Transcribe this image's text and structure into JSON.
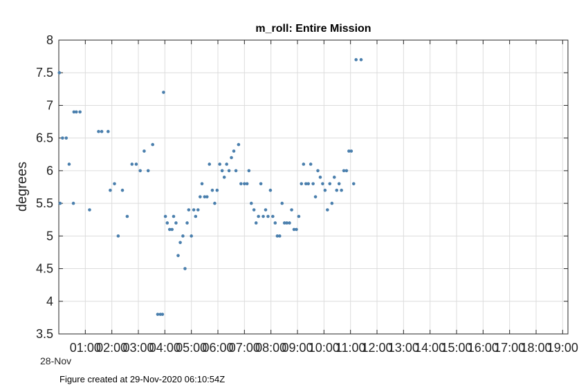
{
  "chart_data": {
    "type": "scatter",
    "title": "m_roll: Entire Mission",
    "xlabel": "",
    "ylabel": "degrees",
    "ylim": [
      3.5,
      8
    ],
    "yticks": [
      3.5,
      4,
      4.5,
      5,
      5.5,
      6,
      6.5,
      7,
      7.5,
      8
    ],
    "ytick_labels": [
      "3.5",
      "4",
      "4.5",
      "5",
      "5.5",
      "6",
      "6.5",
      "7",
      "7.5",
      "8"
    ],
    "xlim_hours": [
      0,
      19.2
    ],
    "xticks_hours": [
      1,
      2,
      3,
      4,
      5,
      6,
      7,
      8,
      9,
      10,
      11,
      12,
      13,
      14,
      15,
      16,
      17,
      18,
      19
    ],
    "xtick_labels": [
      "01:00",
      "02:00",
      "03:00",
      "04:00",
      "05:00",
      "06:00",
      "07:00",
      "08:00",
      "09:00",
      "10:00",
      "11:00",
      "12:00",
      "13:00",
      "14:00",
      "15:00",
      "16:00",
      "17:00",
      "18:00",
      "19:00"
    ],
    "x_date_label": "28-Nov",
    "grid": true,
    "marker_color": "#4a7fad",
    "points": [
      [
        0.02,
        7.5
      ],
      [
        0.05,
        5.5
      ],
      [
        0.14,
        6.5
      ],
      [
        0.28,
        6.5
      ],
      [
        0.39,
        6.1
      ],
      [
        0.55,
        5.5
      ],
      [
        0.57,
        6.9
      ],
      [
        0.66,
        6.9
      ],
      [
        0.8,
        6.9
      ],
      [
        1.16,
        5.4
      ],
      [
        1.5,
        6.6
      ],
      [
        1.62,
        6.6
      ],
      [
        1.86,
        6.6
      ],
      [
        1.94,
        5.7
      ],
      [
        2.1,
        5.8
      ],
      [
        2.24,
        5.0
      ],
      [
        2.4,
        5.7
      ],
      [
        2.58,
        5.3
      ],
      [
        2.76,
        6.1
      ],
      [
        2.92,
        6.1
      ],
      [
        3.07,
        6.0
      ],
      [
        3.22,
        6.3
      ],
      [
        3.37,
        6.0
      ],
      [
        3.54,
        6.4
      ],
      [
        3.73,
        3.8
      ],
      [
        3.83,
        3.8
      ],
      [
        3.91,
        3.8
      ],
      [
        3.95,
        7.2
      ],
      [
        4.02,
        5.3
      ],
      [
        4.09,
        5.2
      ],
      [
        4.18,
        5.1
      ],
      [
        4.27,
        5.1
      ],
      [
        4.33,
        5.3
      ],
      [
        4.42,
        5.2
      ],
      [
        4.5,
        4.7
      ],
      [
        4.58,
        4.9
      ],
      [
        4.68,
        5.0
      ],
      [
        4.76,
        4.5
      ],
      [
        4.84,
        5.2
      ],
      [
        4.9,
        5.4
      ],
      [
        5.0,
        5.0
      ],
      [
        5.09,
        5.4
      ],
      [
        5.16,
        5.3
      ],
      [
        5.25,
        5.4
      ],
      [
        5.33,
        5.6
      ],
      [
        5.4,
        5.8
      ],
      [
        5.5,
        5.6
      ],
      [
        5.59,
        5.6
      ],
      [
        5.68,
        6.1
      ],
      [
        5.79,
        5.7
      ],
      [
        5.88,
        5.5
      ],
      [
        5.97,
        5.7
      ],
      [
        6.07,
        6.1
      ],
      [
        6.16,
        6.0
      ],
      [
        6.24,
        5.9
      ],
      [
        6.33,
        6.1
      ],
      [
        6.42,
        6.0
      ],
      [
        6.51,
        6.2
      ],
      [
        6.6,
        6.3
      ],
      [
        6.68,
        6.0
      ],
      [
        6.78,
        6.4
      ],
      [
        6.87,
        5.8
      ],
      [
        7.0,
        5.8
      ],
      [
        7.1,
        5.8
      ],
      [
        7.17,
        6.0
      ],
      [
        7.26,
        5.5
      ],
      [
        7.36,
        5.4
      ],
      [
        7.44,
        5.2
      ],
      [
        7.53,
        5.3
      ],
      [
        7.62,
        5.8
      ],
      [
        7.71,
        5.3
      ],
      [
        7.8,
        5.4
      ],
      [
        7.89,
        5.3
      ],
      [
        7.98,
        5.7
      ],
      [
        8.07,
        5.3
      ],
      [
        8.16,
        5.2
      ],
      [
        8.24,
        5.0
      ],
      [
        8.33,
        5.0
      ],
      [
        8.42,
        5.5
      ],
      [
        8.51,
        5.2
      ],
      [
        8.6,
        5.2
      ],
      [
        8.7,
        5.2
      ],
      [
        8.78,
        5.4
      ],
      [
        8.87,
        5.1
      ],
      [
        8.96,
        5.1
      ],
      [
        9.05,
        5.3
      ],
      [
        9.15,
        5.8
      ],
      [
        9.23,
        6.1
      ],
      [
        9.32,
        5.8
      ],
      [
        9.41,
        5.8
      ],
      [
        9.5,
        6.1
      ],
      [
        9.59,
        5.8
      ],
      [
        9.68,
        5.6
      ],
      [
        9.77,
        6.0
      ],
      [
        9.86,
        5.9
      ],
      [
        9.95,
        5.8
      ],
      [
        10.04,
        5.7
      ],
      [
        10.13,
        5.4
      ],
      [
        10.22,
        5.8
      ],
      [
        10.3,
        5.5
      ],
      [
        10.39,
        5.9
      ],
      [
        10.48,
        5.7
      ],
      [
        10.57,
        5.8
      ],
      [
        10.66,
        5.7
      ],
      [
        10.75,
        6.0
      ],
      [
        10.85,
        6.0
      ],
      [
        10.94,
        6.3
      ],
      [
        11.03,
        6.3
      ],
      [
        11.12,
        5.8
      ],
      [
        11.21,
        7.7
      ],
      [
        11.4,
        7.7
      ]
    ]
  },
  "footer_text": "Figure created at 29-Nov-2020 06:10:54Z"
}
